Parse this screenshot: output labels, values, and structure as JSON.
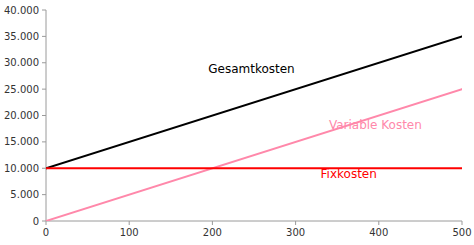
{
  "chart_data": {
    "type": "line",
    "x": [
      0,
      500
    ],
    "series": [
      {
        "color": "#000000",
        "values": [
          10000,
          35000
        ]
      },
      {
        "color": "#ff88aa",
        "values": [
          0,
          25000
        ]
      },
      {
        "color": "#ff0000",
        "values": [
          10000,
          10000
        ]
      }
    ],
    "xlim": [
      0,
      500
    ],
    "ylim": [
      0,
      40000
    ],
    "xticks": [
      0,
      100,
      200,
      300,
      400,
      500
    ],
    "yticks": [
      0,
      {
        "value": 5000,
        "label": "5.000"
      },
      {
        "value": 10000,
        "label": "10.000"
      },
      {
        "value": 15000,
        "label": "15.000"
      },
      {
        "value": 20000,
        "label": "20.000"
      },
      {
        "value": 25000,
        "label": "25.000"
      },
      {
        "value": 30000,
        "label": "30.000"
      },
      {
        "value": 35000,
        "label": "35.000"
      },
      {
        "value": 40000,
        "label": "40.000"
      }
    ],
    "annotations": [
      {
        "text": "Gesamtkosten",
        "x": 195,
        "y": 28000,
        "color": "#000000"
      },
      {
        "text": "Variable Kosten",
        "x": 340,
        "y": 17500,
        "color": "#ff88aa"
      },
      {
        "text": "Fixkosten",
        "x": 330,
        "y": 8200,
        "color": "#ff0000"
      }
    ],
    "grid": false
  }
}
